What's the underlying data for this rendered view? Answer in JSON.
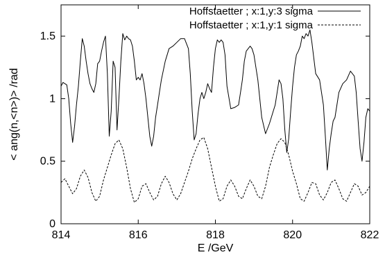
{
  "chart_data": {
    "type": "line",
    "xlabel": "E /GeV",
    "ylabel": "< ang(n,<n>)> /rad",
    "xlim": [
      814,
      822
    ],
    "ylim": [
      0,
      1.75
    ],
    "x_ticks": [
      "814",
      "816",
      "818",
      "820",
      "822"
    ],
    "y_ticks": [
      "0",
      "0.5",
      "1",
      "1.5"
    ],
    "grid": false,
    "legend_position": "top-right",
    "series": [
      {
        "name": "Hoffstaetter ; x:1,y:3 sigma",
        "line_style": "solid",
        "x": [
          814.0,
          814.05,
          814.1,
          814.15,
          814.2,
          814.25,
          814.3,
          814.35,
          814.4,
          814.45,
          814.5,
          814.55,
          814.6,
          814.65,
          814.7,
          814.75,
          814.8,
          814.85,
          814.9,
          814.95,
          815.0,
          815.05,
          815.1,
          815.15,
          815.2,
          815.25,
          815.3,
          815.35,
          815.4,
          815.45,
          815.5,
          815.55,
          815.6,
          815.65,
          815.7,
          815.75,
          815.8,
          815.85,
          815.9,
          815.95,
          816.0,
          816.05,
          816.1,
          816.15,
          816.2,
          816.3,
          816.35,
          816.4,
          816.45,
          816.5,
          816.55,
          816.6,
          816.7,
          816.8,
          816.9,
          817.0,
          817.1,
          817.2,
          817.3,
          817.35,
          817.4,
          817.45,
          817.5,
          817.55,
          817.6,
          817.65,
          817.7,
          817.75,
          817.8,
          817.85,
          817.9,
          817.95,
          818.0,
          818.05,
          818.1,
          818.15,
          818.2,
          818.25,
          818.3,
          818.4,
          818.5,
          818.6,
          818.65,
          818.7,
          818.75,
          818.8,
          818.85,
          818.9,
          818.95,
          819.0,
          819.05,
          819.1,
          819.2,
          819.3,
          819.4,
          819.5,
          819.55,
          819.6,
          819.65,
          819.7,
          819.75,
          819.8,
          819.85,
          819.9,
          819.95,
          820.0,
          820.05,
          820.1,
          820.15,
          820.2,
          820.25,
          820.3,
          820.35,
          820.4,
          820.45,
          820.5,
          820.6,
          820.7,
          820.8,
          820.85,
          820.9,
          820.95,
          821.0,
          821.05,
          821.1,
          821.15,
          821.2,
          821.3,
          821.4,
          821.5,
          821.6,
          821.65,
          821.7,
          821.75,
          821.8,
          821.85,
          821.9,
          821.95,
          822.0
        ],
        "values": [
          1.1,
          1.13,
          1.12,
          1.11,
          1.0,
          0.8,
          0.65,
          0.78,
          0.95,
          1.1,
          1.3,
          1.48,
          1.42,
          1.3,
          1.2,
          1.12,
          1.08,
          1.05,
          1.12,
          1.28,
          1.3,
          1.38,
          1.45,
          1.5,
          1.2,
          0.7,
          0.9,
          1.3,
          1.25,
          0.75,
          1.0,
          1.3,
          1.52,
          1.47,
          1.5,
          1.48,
          1.47,
          1.42,
          1.3,
          1.15,
          1.17,
          1.15,
          1.2,
          1.12,
          1.0,
          0.7,
          0.62,
          0.7,
          0.85,
          0.95,
          1.05,
          1.15,
          1.3,
          1.4,
          1.42,
          1.45,
          1.48,
          1.48,
          1.4,
          1.2,
          0.9,
          0.67,
          0.72,
          0.88,
          1.0,
          1.05,
          1.0,
          1.05,
          1.12,
          1.08,
          1.05,
          1.25,
          1.4,
          1.47,
          1.45,
          1.47,
          1.45,
          1.35,
          1.1,
          0.92,
          0.93,
          0.95,
          1.05,
          1.15,
          1.3,
          1.38,
          1.4,
          1.42,
          1.4,
          1.35,
          1.25,
          1.15,
          0.85,
          0.72,
          0.8,
          0.9,
          0.95,
          1.05,
          1.15,
          1.12,
          1.0,
          0.75,
          0.57,
          0.68,
          0.9,
          1.1,
          1.25,
          1.35,
          1.38,
          1.42,
          1.5,
          1.48,
          1.52,
          1.5,
          1.55,
          1.45,
          1.2,
          1.15,
          0.95,
          0.7,
          0.43,
          0.6,
          0.72,
          0.82,
          0.85,
          0.95,
          1.05,
          1.12,
          1.15,
          1.22,
          1.18,
          1.05,
          0.82,
          0.6,
          0.5,
          0.65,
          0.85,
          0.92,
          0.9
        ]
      },
      {
        "name": "Hoffstaetter ; x:1,y:1 sigma",
        "line_style": "dashed",
        "x": [
          814.0,
          814.1,
          814.2,
          814.3,
          814.4,
          814.5,
          814.6,
          814.7,
          814.8,
          814.9,
          815.0,
          815.1,
          815.2,
          815.3,
          815.4,
          815.5,
          815.6,
          815.7,
          815.8,
          815.9,
          816.0,
          816.1,
          816.2,
          816.3,
          816.4,
          816.5,
          816.6,
          816.7,
          816.8,
          816.9,
          817.0,
          817.1,
          817.2,
          817.3,
          817.4,
          817.5,
          817.6,
          817.7,
          817.8,
          817.9,
          818.0,
          818.1,
          818.2,
          818.3,
          818.4,
          818.5,
          818.6,
          818.7,
          818.8,
          818.9,
          819.0,
          819.1,
          819.2,
          819.3,
          819.4,
          819.5,
          819.6,
          819.7,
          819.8,
          819.9,
          820.0,
          820.1,
          820.2,
          820.3,
          820.4,
          820.5,
          820.6,
          820.7,
          820.8,
          820.9,
          821.0,
          821.1,
          821.2,
          821.3,
          821.4,
          821.5,
          821.6,
          821.7,
          821.8,
          821.9,
          822.0
        ],
        "values": [
          0.33,
          0.36,
          0.3,
          0.24,
          0.28,
          0.38,
          0.43,
          0.37,
          0.25,
          0.18,
          0.22,
          0.35,
          0.45,
          0.55,
          0.64,
          0.67,
          0.6,
          0.45,
          0.28,
          0.17,
          0.2,
          0.3,
          0.32,
          0.25,
          0.19,
          0.22,
          0.32,
          0.38,
          0.33,
          0.24,
          0.19,
          0.24,
          0.33,
          0.42,
          0.52,
          0.6,
          0.67,
          0.69,
          0.6,
          0.45,
          0.3,
          0.18,
          0.2,
          0.3,
          0.35,
          0.3,
          0.22,
          0.2,
          0.28,
          0.35,
          0.3,
          0.22,
          0.2,
          0.3,
          0.45,
          0.55,
          0.64,
          0.68,
          0.65,
          0.55,
          0.42,
          0.32,
          0.2,
          0.18,
          0.25,
          0.33,
          0.32,
          0.23,
          0.19,
          0.25,
          0.33,
          0.35,
          0.28,
          0.2,
          0.18,
          0.25,
          0.32,
          0.3,
          0.23,
          0.25,
          0.3
        ]
      }
    ]
  }
}
